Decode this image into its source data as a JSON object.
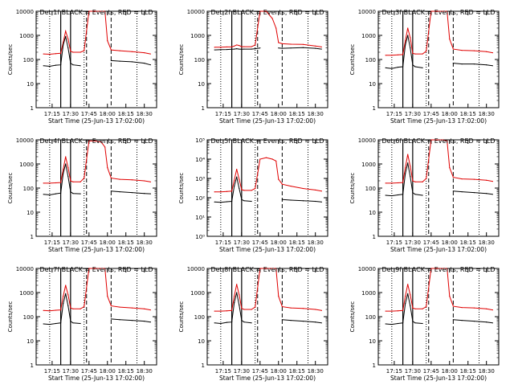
{
  "chart_data": [
    {
      "type": "line",
      "title": "Det 1f BLACK = Events, RED = LLD",
      "xlabel": "Start Time (25-Jun-13 17:02:00)",
      "ylabel": "Counts/sec",
      "xticks": [
        "17:15",
        "17:30",
        "17:45",
        "18:00",
        "18:15",
        "18:30"
      ],
      "ylim": [
        1,
        10000
      ],
      "yticks": [
        "1",
        "10",
        "100",
        "1000",
        "10000"
      ],
      "x": [
        "17:08",
        "17:13",
        "17:18",
        "17:22",
        "17:24",
        "17:26",
        "17:28",
        "17:30",
        "17:32",
        "17:38",
        "17:41",
        "17:45",
        "17:50",
        "17:55",
        "17:58",
        "18:00",
        "18:03",
        "18:10",
        "18:20",
        "18:30",
        "18:35"
      ],
      "series": [
        {
          "name": "RED = LLD",
          "values": [
            170,
            165,
            175,
            180,
            500,
            1500,
            700,
            220,
            200,
            200,
            230,
            10000,
            10000,
            10000,
            10000,
            600,
            250,
            230,
            210,
            190,
            170
          ]
        },
        {
          "name": "BLACK = Events",
          "values": [
            55,
            52,
            58,
            60,
            400,
            900,
            300,
            70,
            60,
            55,
            null,
            null,
            null,
            null,
            null,
            null,
            90,
            85,
            80,
            70,
            60
          ]
        }
      ]
    },
    {
      "type": "line",
      "title": "Det 2f BLACK = Events, RED = LLD",
      "xlabel": "Start Time (25-Jun-13 17:02:00)",
      "ylabel": "Counts/sec",
      "xticks": [
        "17:15",
        "17:30",
        "17:45",
        "18:00",
        "18:15",
        "18:30"
      ],
      "ylim": [
        1,
        10000
      ],
      "yticks": [
        "1",
        "10",
        "100",
        "1000",
        "10000"
      ],
      "x": [
        "17:08",
        "17:13",
        "17:18",
        "17:22",
        "17:24",
        "17:26",
        "17:28",
        "17:30",
        "17:32",
        "17:38",
        "17:41",
        "17:45",
        "17:50",
        "17:55",
        "17:58",
        "18:00",
        "18:03",
        "18:10",
        "18:20",
        "18:30",
        "18:35"
      ],
      "series": [
        {
          "name": "RED = LLD",
          "values": [
            320,
            320,
            330,
            330,
            360,
            400,
            380,
            340,
            340,
            340,
            400,
            10000,
            10000,
            5000,
            2000,
            500,
            450,
            430,
            420,
            360,
            330
          ]
        },
        {
          "name": "BLACK = Events",
          "values": [
            250,
            255,
            260,
            265,
            270,
            280,
            270,
            265,
            270,
            270,
            280,
            300,
            null,
            null,
            null,
            300,
            290,
            300,
            310,
            290,
            270
          ]
        }
      ]
    },
    {
      "type": "line",
      "title": "Det 3f BLACK = Events, RED = LLD",
      "xlabel": "Start Time (25-Jun-13 17:02:00)",
      "ylabel": "Counts/sec",
      "xticks": [
        "17:15",
        "17:30",
        "17:45",
        "18:00",
        "18:15",
        "18:30"
      ],
      "ylim": [
        1,
        10000
      ],
      "yticks": [
        "1",
        "10",
        "100",
        "1000",
        "10000"
      ],
      "x": [
        "17:08",
        "17:13",
        "17:18",
        "17:22",
        "17:24",
        "17:26",
        "17:28",
        "17:30",
        "17:32",
        "17:38",
        "17:41",
        "17:45",
        "17:50",
        "17:55",
        "17:58",
        "18:00",
        "18:03",
        "18:10",
        "18:20",
        "18:30",
        "18:35"
      ],
      "series": [
        {
          "name": "RED = LLD",
          "values": [
            150,
            150,
            155,
            160,
            600,
            2000,
            800,
            180,
            170,
            170,
            220,
            10000,
            10000,
            10000,
            10000,
            700,
            270,
            240,
            230,
            210,
            190
          ]
        },
        {
          "name": "BLACK = Events",
          "values": [
            45,
            42,
            48,
            50,
            400,
            1000,
            300,
            60,
            50,
            45,
            null,
            null,
            null,
            null,
            null,
            null,
            70,
            65,
            65,
            60,
            55
          ]
        }
      ]
    },
    {
      "type": "line",
      "title": "Det 4f BLACK = Events, RED = LLD",
      "xlabel": "Start Time (25-Jun-13 17:02:00)",
      "ylabel": "Counts/sec",
      "xticks": [
        "17:15",
        "17:30",
        "17:45",
        "18:00",
        "18:15",
        "18:30"
      ],
      "ylim": [
        1,
        10000
      ],
      "yticks": [
        "1",
        "10",
        "100",
        "1000",
        "10000"
      ],
      "x": [
        "17:08",
        "17:13",
        "17:18",
        "17:22",
        "17:24",
        "17:26",
        "17:28",
        "17:30",
        "17:32",
        "17:38",
        "17:41",
        "17:45",
        "17:50",
        "17:55",
        "17:58",
        "18:00",
        "18:03",
        "18:10",
        "18:20",
        "18:30",
        "18:35"
      ],
      "series": [
        {
          "name": "RED = LLD",
          "values": [
            160,
            160,
            165,
            170,
            600,
            2000,
            700,
            200,
            180,
            180,
            260,
            9000,
            9000,
            8000,
            5000,
            700,
            260,
            230,
            220,
            200,
            180
          ]
        },
        {
          "name": "BLACK = Events",
          "values": [
            55,
            52,
            58,
            62,
            400,
            1000,
            300,
            70,
            60,
            58,
            null,
            null,
            null,
            null,
            null,
            null,
            75,
            70,
            65,
            60,
            58
          ]
        }
      ]
    },
    {
      "type": "line",
      "title": "Det 5f BLACK = Events, RED = LLD",
      "xlabel": "Start Time (25-Jun-13 17:02:00)",
      "ylabel": "Counts/sec",
      "xticks": [
        "17:15",
        "17:30",
        "17:45",
        "18:00",
        "18:15",
        "18:30"
      ],
      "ylim": [
        1,
        100000
      ],
      "yticks": [
        "10⁰",
        "10¹",
        "10²",
        "10³",
        "10⁴",
        "10⁵"
      ],
      "x": [
        "17:08",
        "17:13",
        "17:18",
        "17:22",
        "17:24",
        "17:26",
        "17:28",
        "17:30",
        "17:32",
        "17:38",
        "17:41",
        "17:45",
        "17:50",
        "17:55",
        "17:58",
        "18:00",
        "18:03",
        "18:10",
        "18:20",
        "18:30",
        "18:35"
      ],
      "series": [
        {
          "name": "RED = LLD",
          "values": [
            200,
            200,
            210,
            220,
            800,
            3000,
            900,
            260,
            240,
            240,
            300,
            10000,
            12000,
            10000,
            8000,
            900,
            500,
            400,
            300,
            250,
            220
          ]
        },
        {
          "name": "BLACK = Events",
          "values": [
            60,
            58,
            62,
            65,
            400,
            1200,
            300,
            80,
            70,
            65,
            null,
            null,
            null,
            null,
            null,
            null,
            80,
            75,
            70,
            65,
            60
          ]
        }
      ]
    },
    {
      "type": "line",
      "title": "Det 6f BLACK = Events, RED = LLD",
      "xlabel": "Start Time (25-Jun-13 17:02:00)",
      "ylabel": "Counts/sec",
      "xticks": [
        "17:15",
        "17:30",
        "17:45",
        "18:00",
        "18:15",
        "18:30"
      ],
      "ylim": [
        1,
        10000
      ],
      "yticks": [
        "1",
        "10",
        "100",
        "1000",
        "10000"
      ],
      "x": [
        "17:08",
        "17:13",
        "17:18",
        "17:22",
        "17:24",
        "17:26",
        "17:28",
        "17:30",
        "17:32",
        "17:38",
        "17:41",
        "17:45",
        "17:50",
        "17:55",
        "17:58",
        "18:00",
        "18:03",
        "18:10",
        "18:20",
        "18:30",
        "18:35"
      ],
      "series": [
        {
          "name": "RED = LLD",
          "values": [
            160,
            160,
            165,
            170,
            700,
            2500,
            800,
            200,
            180,
            180,
            250,
            10000,
            10000,
            10000,
            9000,
            700,
            280,
            240,
            230,
            210,
            190
          ]
        },
        {
          "name": "BLACK = Events",
          "values": [
            50,
            48,
            52,
            55,
            400,
            1100,
            300,
            65,
            55,
            50,
            null,
            null,
            null,
            null,
            null,
            null,
            75,
            70,
            65,
            60,
            55
          ]
        }
      ]
    },
    {
      "type": "line",
      "title": "Det 7f BLACK = Events, RED = LLD",
      "xlabel": "Start Time (25-Jun-13 17:02:00)",
      "ylabel": "Counts/sec",
      "xticks": [
        "17:15",
        "17:30",
        "17:45",
        "18:00",
        "18:15",
        "18:30"
      ],
      "ylim": [
        1,
        10000
      ],
      "yticks": [
        "1",
        "10",
        "100",
        "1000",
        "10000"
      ],
      "x": [
        "17:08",
        "17:13",
        "17:18",
        "17:22",
        "17:24",
        "17:26",
        "17:28",
        "17:30",
        "17:32",
        "17:38",
        "17:41",
        "17:45",
        "17:50",
        "17:55",
        "17:58",
        "18:00",
        "18:03",
        "18:10",
        "18:20",
        "18:30",
        "18:35"
      ],
      "series": [
        {
          "name": "RED = LLD",
          "values": [
            180,
            175,
            185,
            190,
            700,
            2000,
            800,
            230,
            210,
            210,
            260,
            10000,
            10000,
            10000,
            10000,
            700,
            280,
            250,
            230,
            210,
            190
          ]
        },
        {
          "name": "BLACK = Events",
          "values": [
            50,
            48,
            52,
            55,
            350,
            900,
            280,
            65,
            55,
            52,
            null,
            null,
            null,
            null,
            null,
            null,
            80,
            75,
            70,
            65,
            60
          ]
        }
      ]
    },
    {
      "type": "line",
      "title": "Det 8f BLACK = Events, RED = LLD",
      "xlabel": "Start Time (25-Jun-13 17:02:00)",
      "ylabel": "Counts/sec",
      "xticks": [
        "17:15",
        "17:30",
        "17:45",
        "18:00",
        "18:15",
        "18:30"
      ],
      "ylim": [
        1,
        10000
      ],
      "yticks": [
        "1",
        "10",
        "100",
        "1000",
        "10000"
      ],
      "x": [
        "17:08",
        "17:13",
        "17:18",
        "17:22",
        "17:24",
        "17:26",
        "17:28",
        "17:30",
        "17:32",
        "17:38",
        "17:41",
        "17:45",
        "17:50",
        "17:55",
        "17:58",
        "18:00",
        "18:03",
        "18:10",
        "18:20",
        "18:30",
        "18:35"
      ],
      "series": [
        {
          "name": "RED = LLD",
          "values": [
            170,
            170,
            175,
            180,
            700,
            2200,
            800,
            220,
            200,
            200,
            250,
            10000,
            10000,
            10000,
            10000,
            700,
            260,
            230,
            220,
            200,
            180
          ]
        },
        {
          "name": "BLACK = Events",
          "values": [
            55,
            52,
            58,
            60,
            380,
            1000,
            300,
            70,
            60,
            55,
            null,
            null,
            null,
            null,
            null,
            null,
            75,
            70,
            65,
            60,
            55
          ]
        }
      ]
    },
    {
      "type": "line",
      "title": "Det 9f BLACK = Events, RED = LLD",
      "xlabel": "Start Time (25-Jun-13 17:02:00)",
      "ylabel": "Counts/sec",
      "xticks": [
        "17:15",
        "17:30",
        "17:45",
        "18:00",
        "18:15",
        "18:30"
      ],
      "ylim": [
        1,
        10000
      ],
      "yticks": [
        "1",
        "10",
        "100",
        "1000",
        "10000"
      ],
      "x": [
        "17:08",
        "17:13",
        "17:18",
        "17:22",
        "17:24",
        "17:26",
        "17:28",
        "17:30",
        "17:32",
        "17:38",
        "17:41",
        "17:45",
        "17:50",
        "17:55",
        "17:58",
        "18:00",
        "18:03",
        "18:10",
        "18:20",
        "18:30",
        "18:35"
      ],
      "series": [
        {
          "name": "RED = LLD",
          "values": [
            170,
            170,
            175,
            180,
            700,
            2200,
            800,
            230,
            210,
            210,
            260,
            10000,
            10000,
            10000,
            10000,
            700,
            270,
            240,
            230,
            210,
            190
          ]
        },
        {
          "name": "BLACK = Events",
          "values": [
            50,
            48,
            52,
            55,
            350,
            900,
            280,
            65,
            55,
            52,
            null,
            null,
            null,
            null,
            null,
            null,
            75,
            70,
            65,
            60,
            55
          ]
        }
      ]
    }
  ],
  "colors": {
    "red_series": "#e00000",
    "black_series": "#000000",
    "background": "#ffffff"
  },
  "markers": {
    "dotted_vertical": [
      "17:13",
      "17:41",
      "18:24"
    ],
    "solid_vertical": [
      "17:22",
      "17:30"
    ],
    "dashed_vertical": [
      "17:43",
      "18:03"
    ]
  }
}
